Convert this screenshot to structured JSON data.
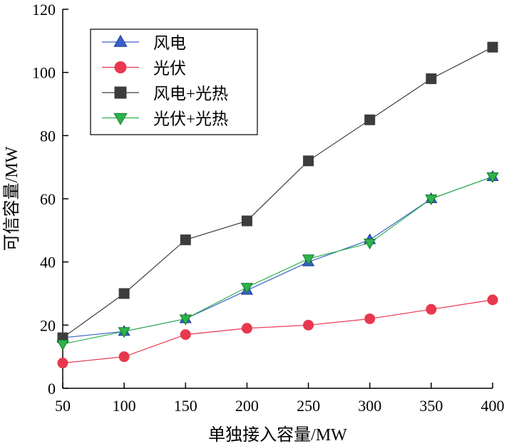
{
  "chart_data": {
    "type": "line",
    "xlabel": "单独接入容量/MW",
    "ylabel": "可信容量/MW",
    "x": [
      50,
      100,
      150,
      200,
      250,
      300,
      350,
      400
    ],
    "xticks": [
      50,
      100,
      150,
      200,
      250,
      300,
      350,
      400
    ],
    "yticks": [
      0,
      20,
      40,
      60,
      80,
      100,
      120
    ],
    "xlim": [
      50,
      400
    ],
    "ylim": [
      0,
      120
    ],
    "grid": false,
    "legend_position": "top-left",
    "series": [
      {
        "name": "风电",
        "marker": "triangle-up",
        "color": "#3a5fcd",
        "values": [
          16,
          18,
          22,
          31,
          40,
          47,
          60,
          67
        ]
      },
      {
        "name": "光伏",
        "marker": "circle",
        "color": "#e8384f",
        "values": [
          8,
          10,
          17,
          19,
          20,
          22,
          25,
          28
        ]
      },
      {
        "name": "风电+光热",
        "marker": "square",
        "color": "#3d3d3d",
        "values": [
          16,
          30,
          47,
          53,
          72,
          85,
          98,
          108
        ]
      },
      {
        "name": "光伏+光热",
        "marker": "triangle-down",
        "color": "#2db34a",
        "values": [
          14,
          18,
          22,
          32,
          41,
          46,
          60,
          67
        ]
      }
    ]
  }
}
